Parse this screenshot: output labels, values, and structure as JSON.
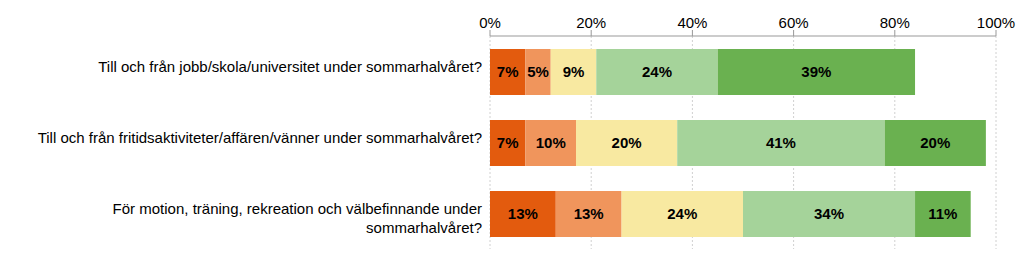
{
  "chart_data": {
    "type": "bar",
    "orientation": "horizontal",
    "stacked": true,
    "data_labels": true,
    "grid": true,
    "categories": [
      "Till och från jobb/skola/universitet under sommarhalvåret?",
      "Till och från fritidsaktiviteter/affären/vänner under sommarhalvåret?",
      "För motion, träning, rekreation och välbefinnande under sommarhalvåret?"
    ],
    "series": [
      {
        "color": "#e35b0e",
        "values": [
          7,
          7,
          13
        ],
        "value_labels": [
          "7%",
          "7%",
          "13%"
        ]
      },
      {
        "color": "#f0955c",
        "values": [
          5,
          10,
          13
        ],
        "value_labels": [
          "5%",
          "10%",
          "13%"
        ]
      },
      {
        "color": "#f8e9a1",
        "values": [
          9,
          20,
          24
        ],
        "value_labels": [
          "9%",
          "20%",
          "24%"
        ]
      },
      {
        "color": "#a5d39a",
        "values": [
          24,
          41,
          34
        ],
        "value_labels": [
          "24%",
          "41%",
          "34%"
        ]
      },
      {
        "color": "#6ab150",
        "values": [
          39,
          20,
          11
        ],
        "value_labels": [
          "39%",
          "20%",
          "11%"
        ]
      }
    ],
    "xlim": [
      0,
      100
    ],
    "xticks": [
      {
        "value": 0,
        "label": "0%"
      },
      {
        "value": 20,
        "label": "20%"
      },
      {
        "value": 40,
        "label": "40%"
      },
      {
        "value": 60,
        "label": "60%"
      },
      {
        "value": 80,
        "label": "80%"
      },
      {
        "value": 100,
        "label": "100%"
      }
    ]
  }
}
